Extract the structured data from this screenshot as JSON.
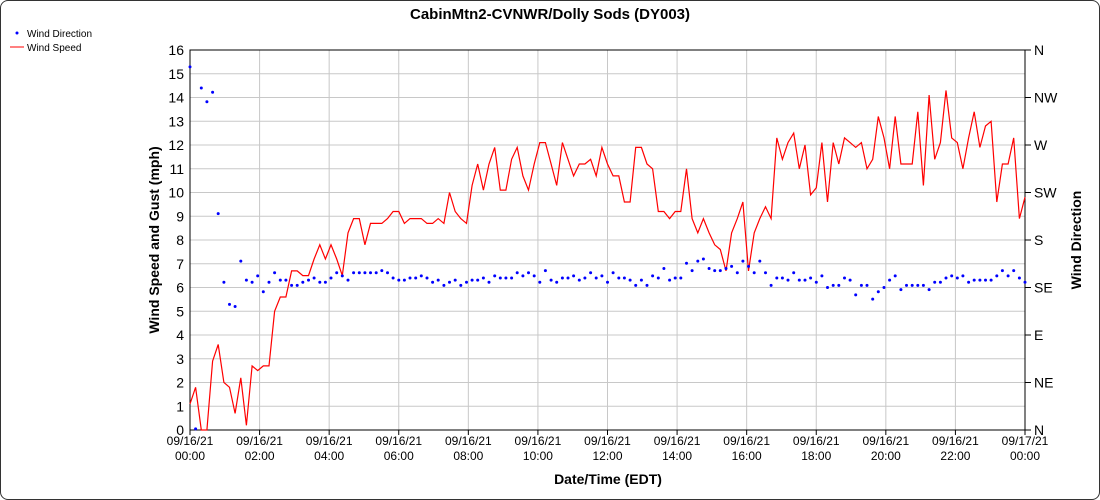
{
  "chart_data": {
    "type": "line",
    "title": "CabinMtn2-CVNWR/Dolly Sods (DY003)",
    "xlabel": "Date/Time (EDT)",
    "ylabel": "Wind Speed and Gust (mph)",
    "y2label": "Wind Direction",
    "xlim_hours": [
      0,
      24
    ],
    "ylim": [
      0,
      16
    ],
    "y2lim_degrees": [
      0,
      360
    ],
    "grid": true,
    "legend_position": "top-left",
    "x_tick_labels": [
      [
        "09/16/21",
        "00:00"
      ],
      [
        "09/16/21",
        "02:00"
      ],
      [
        "09/16/21",
        "04:00"
      ],
      [
        "09/16/21",
        "06:00"
      ],
      [
        "09/16/21",
        "08:00"
      ],
      [
        "09/16/21",
        "10:00"
      ],
      [
        "09/16/21",
        "12:00"
      ],
      [
        "09/16/21",
        "14:00"
      ],
      [
        "09/16/21",
        "16:00"
      ],
      [
        "09/16/21",
        "18:00"
      ],
      [
        "09/16/21",
        "20:00"
      ],
      [
        "09/16/21",
        "22:00"
      ],
      [
        "09/17/21",
        "00:00"
      ]
    ],
    "y_tick_labels": [
      "0",
      "1",
      "2",
      "3",
      "4",
      "5",
      "6",
      "7",
      "8",
      "9",
      "10",
      "11",
      "12",
      "13",
      "14",
      "15",
      "16"
    ],
    "y2_tick_labels": [
      "N",
      "NE",
      "E",
      "SE",
      "S",
      "SW",
      "W",
      "NW",
      "N"
    ],
    "series": [
      {
        "name": "Wind Direction",
        "kind": "scatter",
        "color": "#0000ff",
        "units": "degrees",
        "values": [
          344,
          1,
          324,
          311,
          320,
          205,
          140,
          119,
          117,
          160,
          142,
          140,
          146,
          131,
          140,
          149,
          142,
          142,
          137,
          137,
          140,
          142,
          144,
          140,
          140,
          144,
          149,
          146,
          142,
          149,
          149,
          149,
          149,
          149,
          151,
          149,
          144,
          142,
          142,
          144,
          144,
          146,
          144,
          140,
          142,
          137,
          140,
          142,
          137,
          140,
          142,
          142,
          144,
          140,
          146,
          144,
          144,
          144,
          149,
          146,
          149,
          146,
          140,
          151,
          142,
          140,
          144,
          144,
          146,
          142,
          144,
          149,
          144,
          146,
          140,
          149,
          144,
          144,
          142,
          137,
          142,
          137,
          146,
          144,
          153,
          142,
          144,
          144,
          158,
          151,
          160,
          162,
          153,
          151,
          151,
          153,
          155,
          149,
          160,
          155,
          149,
          160,
          149,
          137,
          144,
          144,
          142,
          149,
          142,
          142,
          144,
          140,
          146,
          135,
          137,
          137,
          144,
          142,
          128,
          137,
          137,
          124,
          131,
          135,
          142,
          146,
          133,
          137,
          137,
          137,
          137,
          133,
          140,
          140,
          144,
          146,
          144,
          146,
          140,
          142,
          142,
          142,
          142,
          146,
          151,
          146,
          151,
          144,
          140
        ]
      },
      {
        "name": "Wind Speed",
        "kind": "line",
        "color": "#ff0000",
        "units": "mph",
        "values": [
          1.1,
          1.8,
          0,
          0,
          2.9,
          3.6,
          2.0,
          1.8,
          0.7,
          2.2,
          0.2,
          2.7,
          2.5,
          2.7,
          2.7,
          5.0,
          5.6,
          5.6,
          6.7,
          6.7,
          6.5,
          6.5,
          7.2,
          7.8,
          7.2,
          7.8,
          7.2,
          6.5,
          8.3,
          8.9,
          8.9,
          7.8,
          8.7,
          8.7,
          8.7,
          8.9,
          9.2,
          9.2,
          8.7,
          8.9,
          8.9,
          8.9,
          8.7,
          8.7,
          8.9,
          8.7,
          10.0,
          9.2,
          8.9,
          8.7,
          10.3,
          11.2,
          10.1,
          11.2,
          11.9,
          10.1,
          10.1,
          11.4,
          11.9,
          10.7,
          10.1,
          11.2,
          12.1,
          12.1,
          11.2,
          10.3,
          12.1,
          11.4,
          10.7,
          11.2,
          11.2,
          11.4,
          10.7,
          11.9,
          11.2,
          10.7,
          10.7,
          9.6,
          9.6,
          11.9,
          11.9,
          11.2,
          11.0,
          9.2,
          9.2,
          8.9,
          9.2,
          9.2,
          11.0,
          8.9,
          8.3,
          8.9,
          8.3,
          7.8,
          7.6,
          6.7,
          8.3,
          8.9,
          9.6,
          6.7,
          8.3,
          8.9,
          9.4,
          8.9,
          12.3,
          11.4,
          12.1,
          12.5,
          11.0,
          12.0,
          9.9,
          10.2,
          12.1,
          9.6,
          12.1,
          11.2,
          12.3,
          12.1,
          11.9,
          12.1,
          11.0,
          11.4,
          13.2,
          12.3,
          11.0,
          13.2,
          11.2,
          11.2,
          11.2,
          13.4,
          10.3,
          14.1,
          11.4,
          12.1,
          14.3,
          12.3,
          12.1,
          11.0,
          12.3,
          13.4,
          11.9,
          12.8,
          13.0,
          9.6,
          11.2,
          11.2,
          12.3,
          8.9,
          9.8
        ]
      }
    ]
  }
}
